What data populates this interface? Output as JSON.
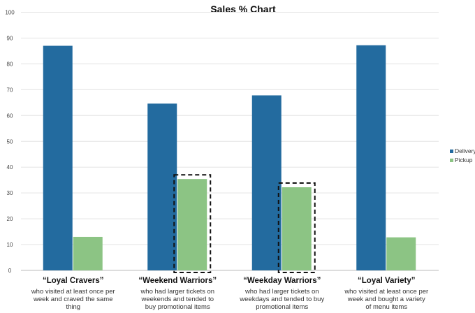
{
  "chart_data": {
    "type": "bar",
    "title": "Sales % Chart",
    "xlabel": "",
    "ylabel": "",
    "ylim": [
      0,
      100
    ],
    "yticks": [
      0,
      10,
      20,
      30,
      40,
      50,
      60,
      70,
      80,
      90,
      100
    ],
    "grid": true,
    "legend_position": "right",
    "categories": [
      "“Loyal Cravers”",
      "“Weekend Warriors”",
      "“Weekday Warriors”",
      "“Loyal Variety”"
    ],
    "category_descriptions": [
      [
        "who visited at least once per",
        "week and craved the same",
        "thing"
      ],
      [
        "who had larger tickets on",
        "weekends and tended to",
        "buy promotional items"
      ],
      [
        "who had larger tickets on",
        "weekdays and tended to buy",
        "promotional items"
      ],
      [
        "who visited at least once per",
        "week and bought a variety",
        "of menu items"
      ]
    ],
    "series": [
      {
        "name": "Delivery",
        "color": "#236b9f",
        "values": [
          87,
          64.6,
          67.8,
          87.2
        ]
      },
      {
        "name": "Pickup",
        "color": "#8cc484",
        "values": [
          13,
          35.4,
          32.2,
          12.8
        ]
      }
    ],
    "highlighted": [
      {
        "series": 1,
        "category": 1
      },
      {
        "series": 1,
        "category": 2
      }
    ]
  }
}
